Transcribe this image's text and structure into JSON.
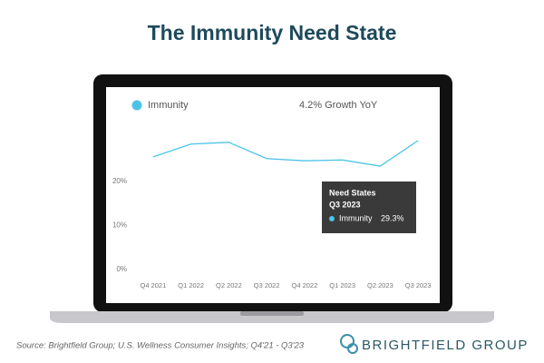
{
  "chart_data": {
    "type": "line",
    "title": "The Immunity Need State",
    "annotation": "4.2% Growth YoY",
    "categories": [
      "Q4 2021",
      "Q1 2022",
      "Q2 2022",
      "Q3 2022",
      "Q4 2022",
      "Q1 2023",
      "Q2 2023",
      "Q3 2023"
    ],
    "series": [
      {
        "name": "Immunity",
        "color": "#4cc4e8",
        "values": [
          25.6,
          28.5,
          28.9,
          25.2,
          24.7,
          24.9,
          23.5,
          29.3
        ]
      }
    ],
    "ylim": [
      0,
      36
    ],
    "yticks": [
      {
        "value": 0,
        "label": "0%"
      },
      {
        "value": 10,
        "label": "10%"
      },
      {
        "value": 20,
        "label": "20%"
      }
    ],
    "grid": false,
    "tooltip": {
      "heading": "Need States",
      "period": "Q3 2023",
      "series_name": "Immunity",
      "value_label": "29.3%"
    },
    "source": "Source: Brightfield Group; U.S. Wellness Consumer Insights; Q4'21 - Q3'23",
    "brand": "BRIGHTFIELD GROUP"
  }
}
